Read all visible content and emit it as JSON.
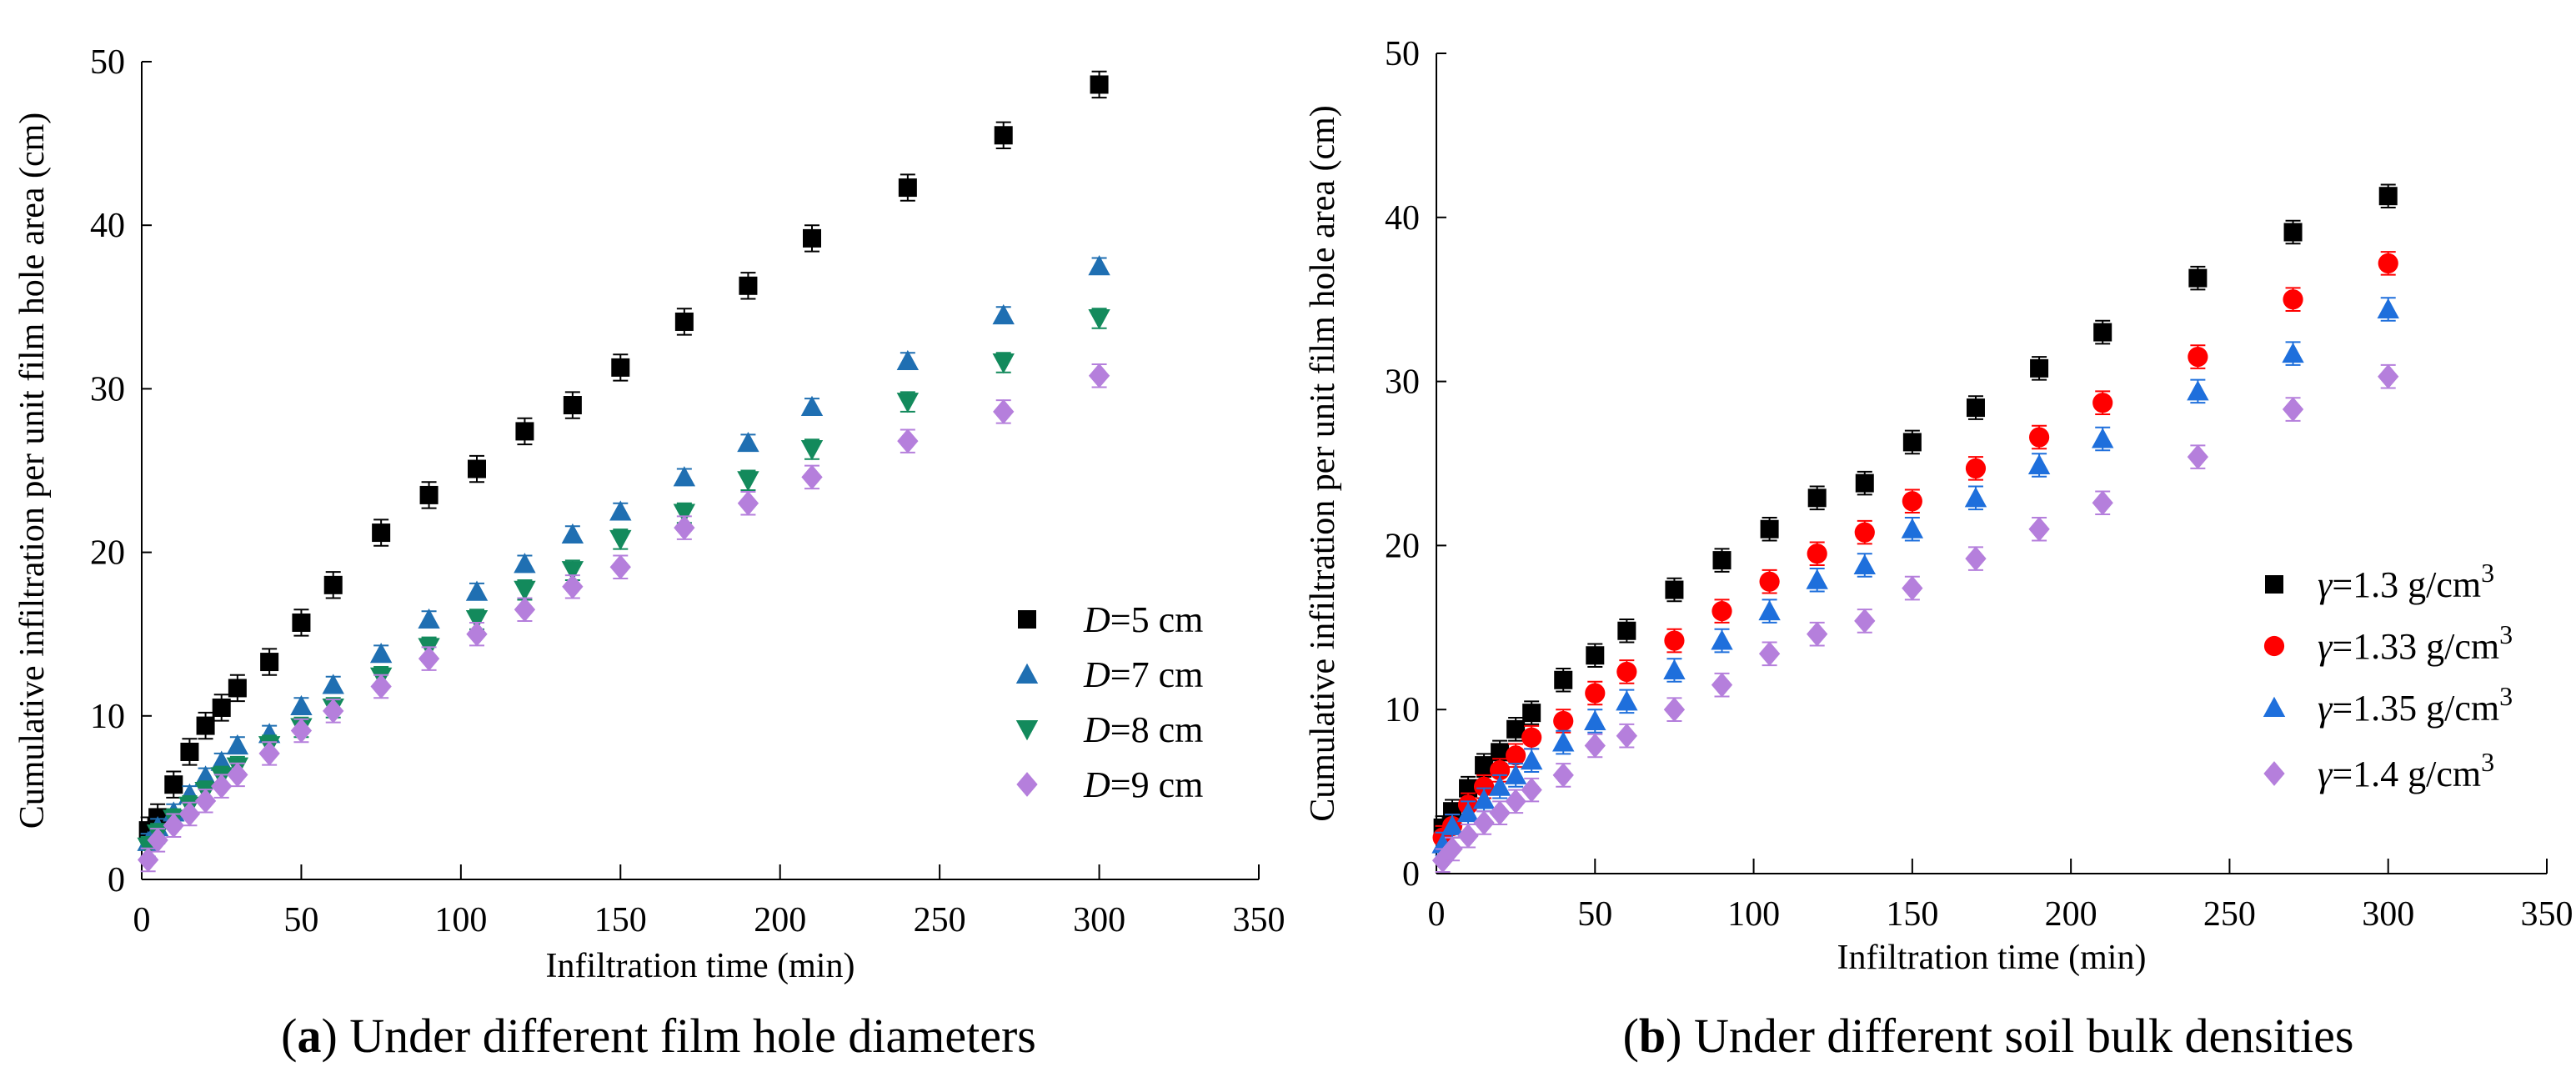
{
  "chart_data": [
    {
      "type": "scatter",
      "panel": "a",
      "caption_prefix": "a",
      "caption": "Under different film hole diameters",
      "xlabel": "Infiltration time (min)",
      "ylabel": "Cumulative infiltration per unit film hole area (cm)",
      "xlim": [
        0,
        350
      ],
      "ylim": [
        0,
        50
      ],
      "xticks": [
        0,
        50,
        100,
        150,
        200,
        250,
        300,
        350
      ],
      "yticks": [
        0,
        10,
        20,
        30,
        40,
        50
      ],
      "grid": false,
      "legend": "right",
      "x": [
        2,
        5,
        10,
        15,
        20,
        25,
        30,
        40,
        50,
        60,
        75,
        90,
        105,
        120,
        135,
        150,
        170,
        190,
        210,
        240,
        270,
        300
      ],
      "series": [
        {
          "name_prefix": "D",
          "name_suffix": "=5 cm",
          "marker": "square",
          "color": "#000000",
          "error": 0.8,
          "values": [
            3.0,
            3.8,
            5.8,
            7.8,
            9.4,
            10.5,
            11.7,
            13.3,
            15.7,
            18.0,
            21.2,
            23.5,
            25.1,
            27.4,
            29.0,
            31.3,
            34.1,
            36.3,
            39.2,
            42.3,
            45.5,
            48.6
          ]
        },
        {
          "name_prefix": "D",
          "name_suffix": "=7 cm",
          "marker": "triangle-up",
          "color": "#1f6fb2",
          "error": 0.5,
          "values": [
            2.3,
            3.2,
            4.1,
            5.2,
            6.3,
            7.2,
            8.2,
            8.9,
            10.6,
            11.9,
            13.8,
            15.9,
            17.6,
            19.3,
            21.1,
            22.5,
            24.6,
            26.7,
            28.9,
            31.7,
            34.5,
            37.5
          ]
        },
        {
          "name_prefix": "D",
          "name_suffix": "=8 cm",
          "marker": "triangle-down",
          "color": "#138a5c",
          "error": 0.6,
          "values": [
            2.0,
            2.8,
            3.7,
            4.5,
            5.4,
            6.3,
            6.9,
            8.2,
            9.3,
            10.5,
            12.4,
            14.2,
            15.9,
            17.7,
            18.9,
            20.8,
            22.4,
            24.4,
            26.3,
            29.2,
            31.6,
            34.3
          ]
        },
        {
          "name_prefix": "D",
          "name_suffix": "=9 cm",
          "marker": "diamond",
          "color": "#b57fdc",
          "error": 0.7,
          "values": [
            1.2,
            2.4,
            3.3,
            4.0,
            4.8,
            5.7,
            6.4,
            7.7,
            9.1,
            10.3,
            11.8,
            13.5,
            15.0,
            16.5,
            17.9,
            19.1,
            21.5,
            23.0,
            24.6,
            26.8,
            28.6,
            30.8
          ]
        }
      ]
    },
    {
      "type": "scatter",
      "panel": "b",
      "caption_prefix": "b",
      "caption": "Under different soil bulk densities",
      "xlabel": "Infiltration time (min)",
      "ylabel": "Cumulative infiltration per unit film hole area (cm)",
      "xlim": [
        0,
        350
      ],
      "ylim": [
        0,
        50
      ],
      "xticks": [
        0,
        50,
        100,
        150,
        200,
        250,
        300,
        350
      ],
      "yticks": [
        0,
        10,
        20,
        30,
        40,
        50
      ],
      "grid": false,
      "legend": "right",
      "x": [
        2,
        5,
        10,
        15,
        20,
        25,
        30,
        40,
        50,
        60,
        75,
        90,
        105,
        120,
        135,
        150,
        170,
        190,
        210,
        240,
        270,
        300
      ],
      "series": [
        {
          "name_prefix": "γ",
          "name_suffix": "=1.3 g/cm",
          "name_sup": "3",
          "marker": "square",
          "color": "#000000",
          "error": 0.7,
          "values": [
            2.8,
            3.8,
            5.2,
            6.6,
            7.4,
            8.8,
            9.8,
            11.8,
            13.3,
            14.8,
            17.3,
            19.1,
            21.0,
            22.9,
            23.8,
            26.3,
            28.4,
            30.8,
            33.0,
            36.3,
            39.1,
            41.3
          ]
        },
        {
          "name_prefix": "γ",
          "name_suffix": "=1.33 g/cm",
          "name_sup": "3",
          "marker": "circle",
          "color": "#ff0000",
          "error": 0.7,
          "values": [
            2.2,
            2.9,
            4.2,
            5.3,
            6.3,
            7.2,
            8.3,
            9.3,
            11.0,
            12.3,
            14.2,
            16.0,
            17.8,
            19.5,
            20.8,
            22.7,
            24.7,
            26.6,
            28.7,
            31.5,
            35.0,
            37.2
          ]
        },
        {
          "name_prefix": "γ",
          "name_suffix": "=1.35 g/cm",
          "name_sup": "3",
          "marker": "triangle-up",
          "color": "#1e6fdc",
          "error": 0.7,
          "values": [
            1.8,
            2.9,
            3.7,
            4.5,
            5.3,
            6.0,
            6.9,
            8.0,
            9.3,
            10.5,
            12.4,
            14.2,
            16.0,
            17.9,
            18.8,
            21.0,
            22.9,
            24.9,
            26.5,
            29.4,
            31.7,
            34.4
          ]
        },
        {
          "name_prefix": "γ",
          "name_suffix": "=1.4 g/cm",
          "name_sup": "3",
          "marker": "diamond",
          "color": "#b57fdc",
          "error": 0.7,
          "values": [
            0.8,
            1.5,
            2.3,
            3.1,
            3.7,
            4.4,
            5.1,
            6.0,
            7.8,
            8.4,
            10.0,
            11.5,
            13.4,
            14.6,
            15.4,
            17.4,
            19.2,
            21.0,
            22.6,
            25.4,
            28.3,
            30.3
          ]
        }
      ]
    }
  ]
}
